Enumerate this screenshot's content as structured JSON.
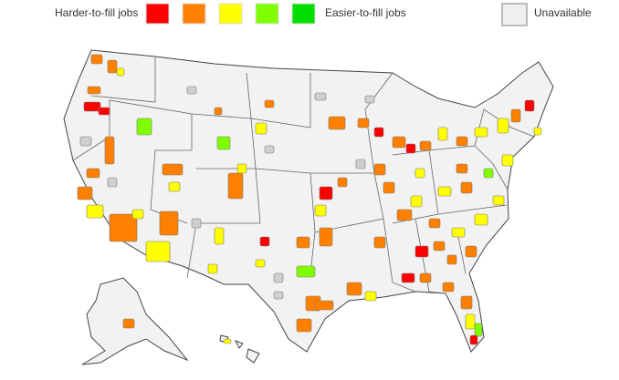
{
  "legend": {
    "harder_label": "Harder-to-fill jobs",
    "easier_label": "Easier-to-fill jobs",
    "unavailable_label": "Unavailable",
    "colors": [
      "#ff0000",
      "#ff8000",
      "#ffff00",
      "#80ff00",
      "#00e000"
    ],
    "unavailable_color": "#f0f0f0"
  }
}
